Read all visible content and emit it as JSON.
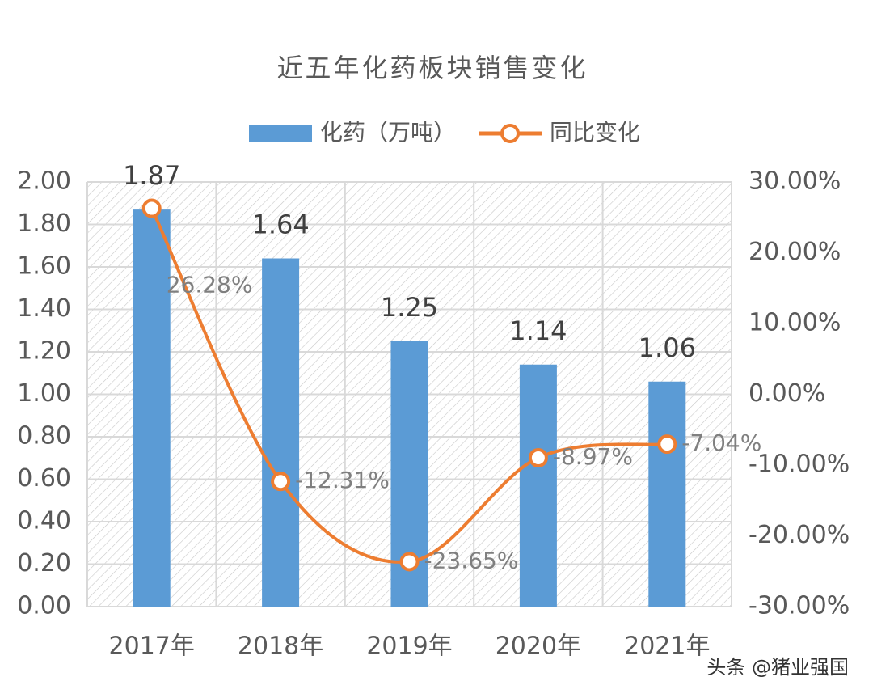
{
  "chart_data": {
    "type": "bar-line",
    "title": "近五年化药板块销售变化",
    "categories": [
      "2017年",
      "2018年",
      "2019年",
      "2020年",
      "2021年"
    ],
    "series": [
      {
        "name": "化药（万吨）",
        "color": "#5b9bd5",
        "type": "bar",
        "values": [
          1.87,
          1.64,
          1.25,
          1.14,
          1.06
        ]
      },
      {
        "name": "同比变化",
        "color": "#ed7d31",
        "type": "line",
        "axis": "y2",
        "values": [
          26.28,
          -12.31,
          -23.65,
          -8.97,
          -7.04
        ],
        "value_labels": [
          "26.28%",
          "-12.31%",
          "-23.65%",
          "-8.97%",
          "-7.04%"
        ]
      }
    ],
    "ylim": [
      0,
      2
    ],
    "yticks": [
      {
        "value": 0,
        "label": "0.00"
      },
      {
        "value": 0.2,
        "label": "0.20"
      },
      {
        "value": 0.4,
        "label": "0.40"
      },
      {
        "value": 0.6,
        "label": "0.60"
      },
      {
        "value": 0.8,
        "label": "0.80"
      },
      {
        "value": 1,
        "label": "1.00"
      },
      {
        "value": 1.2,
        "label": "1.20"
      },
      {
        "value": 1.4,
        "label": "1.40"
      },
      {
        "value": 1.6,
        "label": "1.60"
      },
      {
        "value": 1.8,
        "label": "1.80"
      },
      {
        "value": 2,
        "label": "2.00"
      }
    ],
    "y2lim": [
      -30,
      30
    ],
    "y2ticks": [
      {
        "value": -30,
        "label": "-30.00%"
      },
      {
        "value": -20,
        "label": "-20.00%"
      },
      {
        "value": -10,
        "label": "-10.00%"
      },
      {
        "value": 0,
        "label": "0.00%"
      },
      {
        "value": 10,
        "label": "10.00%"
      },
      {
        "value": 20,
        "label": "20.00%"
      },
      {
        "value": 30,
        "label": "30.00%"
      }
    ],
    "grid": true,
    "legend": "top",
    "credit": "头条 @猪业强国"
  }
}
